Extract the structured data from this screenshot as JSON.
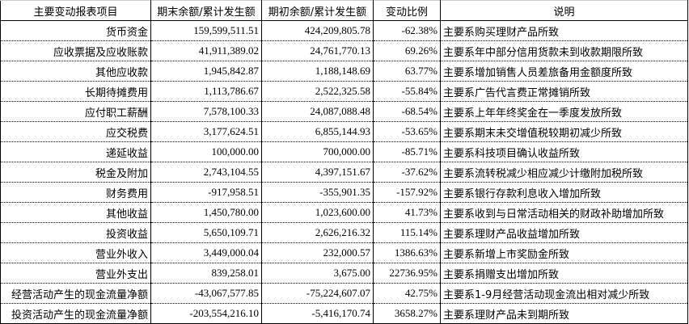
{
  "headers": [
    "主要变动报表项目",
    "期末余额/累计发生额",
    "期初余额/累计发生额",
    "变动比例",
    "说明"
  ],
  "rows": [
    {
      "item": "货币资金",
      "end": "159,599,511.51",
      "begin": "424,209,805.78",
      "ratio": "-62.38%",
      "note": "主要系购买理财产品所致"
    },
    {
      "item": "应收票据及应收账款",
      "end": "41,911,389.02",
      "begin": "24,761,770.13",
      "ratio": "69.26%",
      "note": "主要系年中部分信用货款未到收款期限所致"
    },
    {
      "item": "其他应收款",
      "end": "1,945,842.87",
      "begin": "1,188,148.69",
      "ratio": "63.77%",
      "note": "主要系增加销售人员差旅备用金额度所致"
    },
    {
      "item": "长期待摊费用",
      "end": "1,113,786.67",
      "begin": "2,522,325.58",
      "ratio": "-55.84%",
      "note": "主要系广告代言费正常摊销所致"
    },
    {
      "item": "应付职工薪酬",
      "end": "7,578,100.33",
      "begin": "24,087,088.48",
      "ratio": "-68.54%",
      "note": "主要系上年年终奖金在一季度发放所致"
    },
    {
      "item": "应交税费",
      "end": "3,177,624.51",
      "begin": "6,855,144.93",
      "ratio": "-53.65%",
      "note": "主要系期末未交增值税较期初减少所致"
    },
    {
      "item": "递延收益",
      "end": "100,000.00",
      "begin": "700,000.00",
      "ratio": "-85.71%",
      "note": "主要系科技项目确认收益所致"
    },
    {
      "item": "税金及附加",
      "end": "2,743,104.55",
      "begin": "4,397,151.67",
      "ratio": "-37.62%",
      "note": "主要系流转税减少相应减少计缴附加税所致"
    },
    {
      "item": "财务费用",
      "end": "-917,958.51",
      "begin": "-355,901.35",
      "ratio": "-157.92%",
      "note": "主要系银行存款利息收入增加所致"
    },
    {
      "item": "其他收益",
      "end": "1,450,780.00",
      "begin": "1,023,600.00",
      "ratio": "41.73%",
      "note": "主要系收到与日常活动相关的财政补助增加所致"
    },
    {
      "item": "投资收益",
      "end": "5,650,109.71",
      "begin": "2,626,216.32",
      "ratio": "115.14%",
      "note": "主要系理财产品收益增加所致"
    },
    {
      "item": "营业外收入",
      "end": "3,449,000.04",
      "begin": "232,000.57",
      "ratio": "1386.63%",
      "note": "主要系新增上市奖励金所致"
    },
    {
      "item": "营业外支出",
      "end": "839,258.01",
      "begin": "3,675.00",
      "ratio": "22736.95%",
      "note": "主要系捐赠支出增加所致"
    },
    {
      "item": "经营活动产生的现金流量净额",
      "end": "-43,067,577.85",
      "begin": "-75,224,607.07",
      "ratio": "42.75%",
      "note": "主要系1-9月经营活动现金流出相对减少所致"
    },
    {
      "item": "投资活动产生的现金流量净额",
      "end": "-203,554,216.10",
      "begin": "-5,416,170.74",
      "ratio": "3658.27%",
      "note": "主要系理财产品未到期所致"
    }
  ]
}
